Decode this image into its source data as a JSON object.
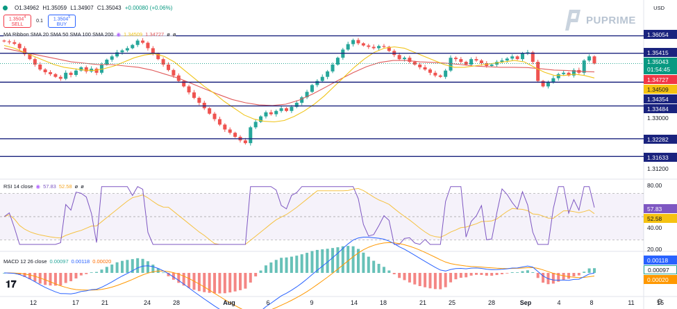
{
  "header": {
    "open": "O1.34962",
    "high": "H1.35059",
    "low": "L1.34907",
    "close": "C1.35043",
    "change": "+0.00080 (+0.06%)"
  },
  "trade": {
    "sell_price": "1.3504",
    "sell_price_sup": "4",
    "sell_label": "SELL",
    "quantity": "0.1",
    "buy_price": "1.3504",
    "buy_price_sup": "5",
    "buy_label": "BUY"
  },
  "currency": "USD",
  "logo_text": "PUPRIME",
  "ribbon_legend": {
    "title": "MA Ribbon SMA 20 SMA 50 SMA 100 SMA 200",
    "v1": "1.34509",
    "v2": "1.34727",
    "v3": "ø",
    "v4": "ø"
  },
  "rsi_legend": {
    "title": "RSI 14 close",
    "v1": "57.83",
    "v2": "52.58",
    "v3": "ø",
    "v4": "ø"
  },
  "macd_legend": {
    "title": "MACD 12 26 close",
    "v1": "0.00097",
    "v2": "0.00118",
    "v3": "0.00020"
  },
  "colors": {
    "up": "#26a69a",
    "down": "#ef5350",
    "sma20": "#f0c419",
    "sma50": "#e05a5a",
    "hline": "#1a237e",
    "rsi": "#7e57c2",
    "rsi_ma": "#f5c242",
    "macd": "#2962ff",
    "signal": "#ff9800"
  },
  "price_axis": {
    "label_1": "1.33000",
    "label_2": "1.31200",
    "current": "1.35043",
    "countdown": "01:54:45",
    "sma20_tag": "1.34509",
    "sma50_tag": "1.34727"
  },
  "levels": [
    "1.36054",
    "1.35415",
    "1.34354",
    "1.33484",
    "1.32282",
    "1.31633"
  ],
  "rsi_axis": [
    "80.00",
    "40.00",
    "20.00"
  ],
  "rsi_tags": {
    "rsi": "57.83",
    "ma": "52.58"
  },
  "macd_tags": {
    "signal": "0.00118",
    "macd": "0.00097",
    "hist": "0.00020"
  },
  "date_axis": [
    "12",
    "17",
    "21",
    "24",
    "28",
    "Aug",
    "6",
    "9",
    "14",
    "18",
    "21",
    "25",
    "28",
    "Sep",
    "4",
    "8",
    "11",
    "15"
  ],
  "chart_data": {
    "type": "candlestick",
    "symbol_quote": "USD",
    "price_ylim": [
      1.308,
      1.364
    ],
    "horizontal_levels": [
      1.36054,
      1.35415,
      1.34354,
      1.33484,
      1.32282,
      1.31633
    ],
    "x_ticks": [
      "12",
      "17",
      "21",
      "24",
      "28",
      "Aug",
      "6",
      "9",
      "14",
      "18",
      "21",
      "25",
      "28",
      "Sep",
      "4",
      "8",
      "11",
      "15"
    ],
    "close_path": [
      1.3585,
      1.3582,
      1.3576,
      1.356,
      1.3538,
      1.352,
      1.35,
      1.3482,
      1.3472,
      1.3465,
      1.3455,
      1.3448,
      1.347,
      1.3462,
      1.3478,
      1.349,
      1.3475,
      1.3485,
      1.347,
      1.35,
      1.3518,
      1.353,
      1.3545,
      1.3552,
      1.356,
      1.3572,
      1.3588,
      1.358,
      1.356,
      1.354,
      1.352,
      1.35,
      1.348,
      1.346,
      1.344,
      1.342,
      1.3398,
      1.3378,
      1.336,
      1.334,
      1.332,
      1.33,
      1.328,
      1.3262,
      1.325,
      1.3235,
      1.3222,
      1.3212,
      1.327,
      1.329,
      1.331,
      1.3325,
      1.3318,
      1.333,
      1.334,
      1.333,
      1.3345,
      1.336,
      1.338,
      1.34,
      1.3425,
      1.344,
      1.3455,
      1.3475,
      1.35,
      1.3525,
      1.3555,
      1.3575,
      1.359,
      1.3578,
      1.357,
      1.3565,
      1.356,
      1.3568,
      1.3565,
      1.355,
      1.3535,
      1.352,
      1.3525,
      1.351,
      1.35,
      1.349,
      1.3482,
      1.347,
      1.346,
      1.3455,
      1.3478,
      1.3525,
      1.352,
      1.351,
      1.35,
      1.352,
      1.3515,
      1.3505,
      1.3495,
      1.35,
      1.351,
      1.3515,
      1.3522,
      1.353,
      1.352,
      1.354,
      1.3545,
      1.351,
      1.344,
      1.342,
      1.3435,
      1.345,
      1.3465,
      1.347,
      1.346,
      1.348,
      1.347,
      1.3515,
      1.353,
      1.3504
    ],
    "sma20": [
      1.357,
      1.356,
      1.3545,
      1.353,
      1.3515,
      1.35,
      1.349,
      1.3485,
      1.348,
      1.3478,
      1.3485,
      1.3495,
      1.351,
      1.3525,
      1.3535,
      1.354,
      1.353,
      1.351,
      1.348,
      1.345,
      1.342,
      1.3395,
      1.3365,
      1.334,
      1.3315,
      1.33,
      1.3292,
      1.329,
      1.3295,
      1.331,
      1.333,
      1.3355,
      1.3385,
      1.342,
      1.3455,
      1.349,
      1.352,
      1.3545,
      1.356,
      1.3565,
      1.356,
      1.3545,
      1.353,
      1.3515,
      1.35,
      1.349,
      1.349,
      1.3495,
      1.35,
      1.3505,
      1.351,
      1.3515,
      1.351,
      1.349,
      1.3472,
      1.346,
      1.346,
      1.3465,
      1.346,
      1.3451
    ],
    "sma50": [
      1.356,
      1.355,
      1.354,
      1.353,
      1.352,
      1.351,
      1.3505,
      1.35,
      1.35,
      1.3495,
      1.349,
      1.348,
      1.3465,
      1.345,
      1.343,
      1.341,
      1.339,
      1.3372,
      1.336,
      1.3352,
      1.335,
      1.3355,
      1.337,
      1.3392,
      1.3418,
      1.3445,
      1.347,
      1.3492,
      1.3508,
      1.3515,
      1.3515,
      1.351,
      1.3508,
      1.3505,
      1.35,
      1.3495,
      1.3492,
      1.349,
      1.349,
      1.3489,
      1.3485,
      1.348,
      1.3478,
      1.3475,
      1.3473
    ],
    "rsi": {
      "ylim": [
        20,
        80
      ],
      "levels": [
        70,
        50,
        30
      ],
      "last": 57.83,
      "ma_last": 52.58
    },
    "macd": {
      "macd_last": 0.00097,
      "signal_last": 0.00118,
      "hist_last": 0.0002
    }
  }
}
